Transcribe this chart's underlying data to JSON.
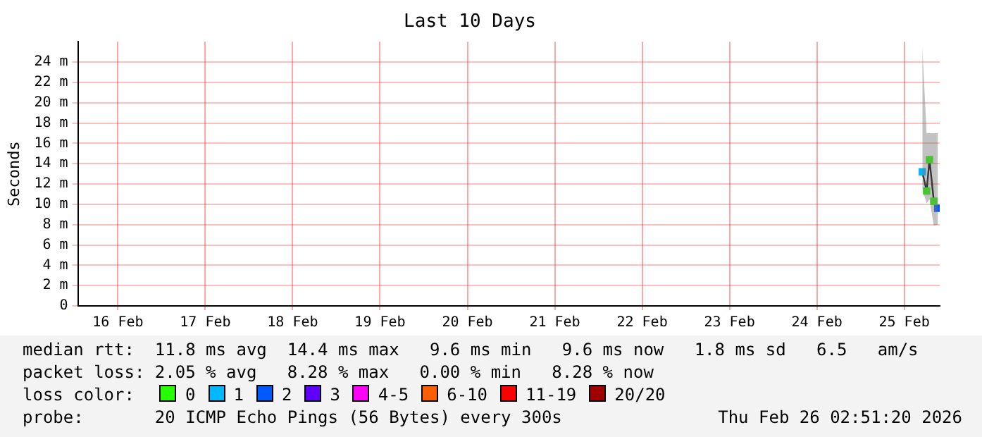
{
  "chart_data": {
    "type": "line",
    "title": "Last 10 Days",
    "ylabel": "Seconds",
    "legend_title": "loss color:",
    "x": [
      "2026-02-25T16:58",
      "2026-02-25T18:09",
      "2026-02-25T18:56",
      "2026-02-25T20:08",
      "2026-02-25T21:12"
    ],
    "xlim": [
      "2026-02-16T01:00",
      "2026-02-25T21:45"
    ],
    "xticks": [
      {
        "value": "2026-02-16T12:00",
        "label": "16 Feb"
      },
      {
        "value": "2026-02-17T12:00",
        "label": "17 Feb"
      },
      {
        "value": "2026-02-18T12:00",
        "label": "18 Feb"
      },
      {
        "value": "2026-02-19T12:00",
        "label": "19 Feb"
      },
      {
        "value": "2026-02-20T12:00",
        "label": "20 Feb"
      },
      {
        "value": "2026-02-21T12:00",
        "label": "21 Feb"
      },
      {
        "value": "2026-02-22T12:00",
        "label": "22 Feb"
      },
      {
        "value": "2026-02-23T12:00",
        "label": "23 Feb"
      },
      {
        "value": "2026-02-24T12:00",
        "label": "24 Feb"
      },
      {
        "value": "2026-02-25T12:00",
        "label": "25 Feb"
      }
    ],
    "ylim": [
      0,
      26
    ],
    "yticks": [
      0,
      {
        "value": 2,
        "label": "2 m"
      },
      {
        "value": 4,
        "label": "4 m"
      },
      {
        "value": 6,
        "label": "6 m"
      },
      {
        "value": 8,
        "label": "8 m"
      },
      {
        "value": 10,
        "label": "10 m"
      },
      {
        "value": 12,
        "label": "12 m"
      },
      {
        "value": 14,
        "label": "14 m"
      },
      {
        "value": 16,
        "label": "16 m"
      },
      {
        "value": 18,
        "label": "18 m"
      },
      {
        "value": 20,
        "label": "20 m"
      },
      {
        "value": 22,
        "label": "22 m"
      },
      {
        "value": 24,
        "label": "24 m"
      }
    ],
    "series": [
      {
        "color": "#000000",
        "values": [
          13.2,
          11.3,
          14.4,
          10.3,
          9.6
        ],
        "lower": [
          11.5,
          10.1,
          10.5,
          7.9,
          8
        ],
        "upper": [
          25.5,
          17,
          17,
          17,
          17
        ]
      },
      {
        "name": "0",
        "type": "scatter",
        "color": "#26ff00",
        "values": [
          null,
          11.3,
          14.4,
          10.3,
          null
        ]
      },
      {
        "name": "1",
        "type": "scatter",
        "color": "#00b8ff",
        "values": [
          13.2,
          null,
          null,
          null,
          null
        ]
      },
      {
        "name": "2",
        "type": "scatter",
        "color": "#0059ff",
        "values": [
          null,
          null,
          null,
          null,
          9.6
        ]
      },
      {
        "name": "3",
        "type": "scatter",
        "color": "#5e00ff",
        "values": [
          null,
          null,
          null,
          null,
          null
        ]
      },
      {
        "name": "4-5",
        "type": "scatter",
        "color": "#ff00ff",
        "values": [
          null,
          null,
          null,
          null,
          null
        ]
      },
      {
        "name": "6-10",
        "type": "scatter",
        "color": "#ff5e00",
        "values": [
          null,
          null,
          null,
          null,
          null
        ]
      },
      {
        "name": "11-19",
        "type": "scatter",
        "color": "#ff0000",
        "values": [
          null,
          null,
          null,
          null,
          null
        ]
      },
      {
        "name": "20/20",
        "type": "scatter",
        "color": "#a10000",
        "values": [
          null,
          null,
          null,
          null,
          null
        ]
      }
    ],
    "grid": true,
    "legend": "bottom",
    "marker": "square",
    "line_style": "solid",
    "annotations": [
      "median rtt:  11.8 ms avg  14.4 ms max   9.6 ms min   9.6 ms now   1.8 ms sd   6.5   am/s",
      "packet loss: 2.05 % avg   8.28 % max   0.00 % min   8.28 % now",
      "probe:       20 ICMP Echo Pings (56 Bytes) every 300s",
      "Thu Feb 26 02:51:20 2026"
    ]
  }
}
